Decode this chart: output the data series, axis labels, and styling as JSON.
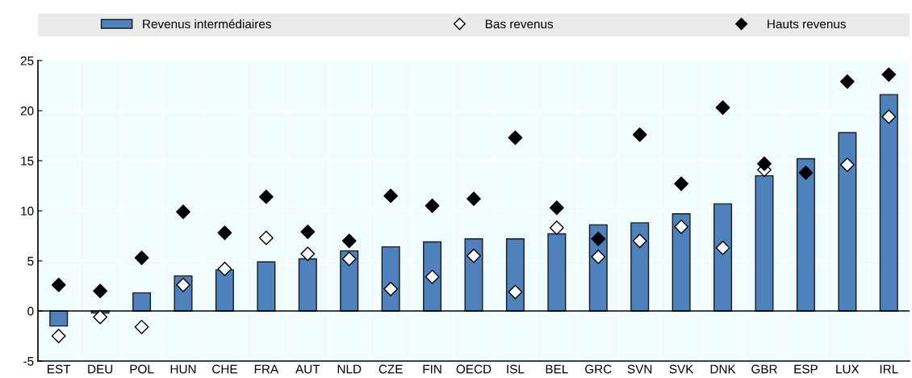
{
  "chart_data": {
    "type": "bar",
    "categories": [
      "EST",
      "DEU",
      "POL",
      "HUN",
      "CHE",
      "FRA",
      "AUT",
      "NLD",
      "CZE",
      "FIN",
      "OECD",
      "ISL",
      "BEL",
      "GRC",
      "SVN",
      "SVK",
      "DNK",
      "GBR",
      "ESP",
      "LUX",
      "IRL"
    ],
    "series": [
      {
        "name": "Revenus intermédiaires",
        "color": "#4f81bd",
        "values": [
          -1.5,
          -0.2,
          1.8,
          3.5,
          4.1,
          4.9,
          5.2,
          6.0,
          6.4,
          6.9,
          7.2,
          7.2,
          7.7,
          8.6,
          8.8,
          9.7,
          10.7,
          13.5,
          15.2,
          17.8,
          21.6
        ]
      },
      {
        "name": "Bas revenus",
        "type": "scatter",
        "marker": "diamond",
        "color": "#ffffff",
        "values": [
          -2.5,
          -0.6,
          -1.6,
          2.6,
          4.2,
          7.3,
          5.7,
          5.2,
          2.2,
          3.4,
          5.5,
          1.9,
          8.3,
          5.4,
          7.0,
          8.4,
          6.3,
          14.1,
          null,
          14.6,
          19.4
        ]
      },
      {
        "name": "Hauts revenus",
        "type": "scatter",
        "marker": "diamond",
        "color": "#000000",
        "values": [
          2.6,
          2.0,
          5.3,
          9.9,
          7.8,
          11.4,
          7.9,
          7.0,
          11.5,
          10.5,
          11.2,
          17.3,
          10.3,
          7.2,
          17.6,
          12.7,
          20.3,
          14.7,
          13.8,
          22.9,
          23.6
        ]
      }
    ],
    "ylim": [
      -5,
      25
    ],
    "yticks": [
      -5,
      0,
      5,
      10,
      15,
      20,
      25
    ],
    "grid": true,
    "legend": "top"
  }
}
